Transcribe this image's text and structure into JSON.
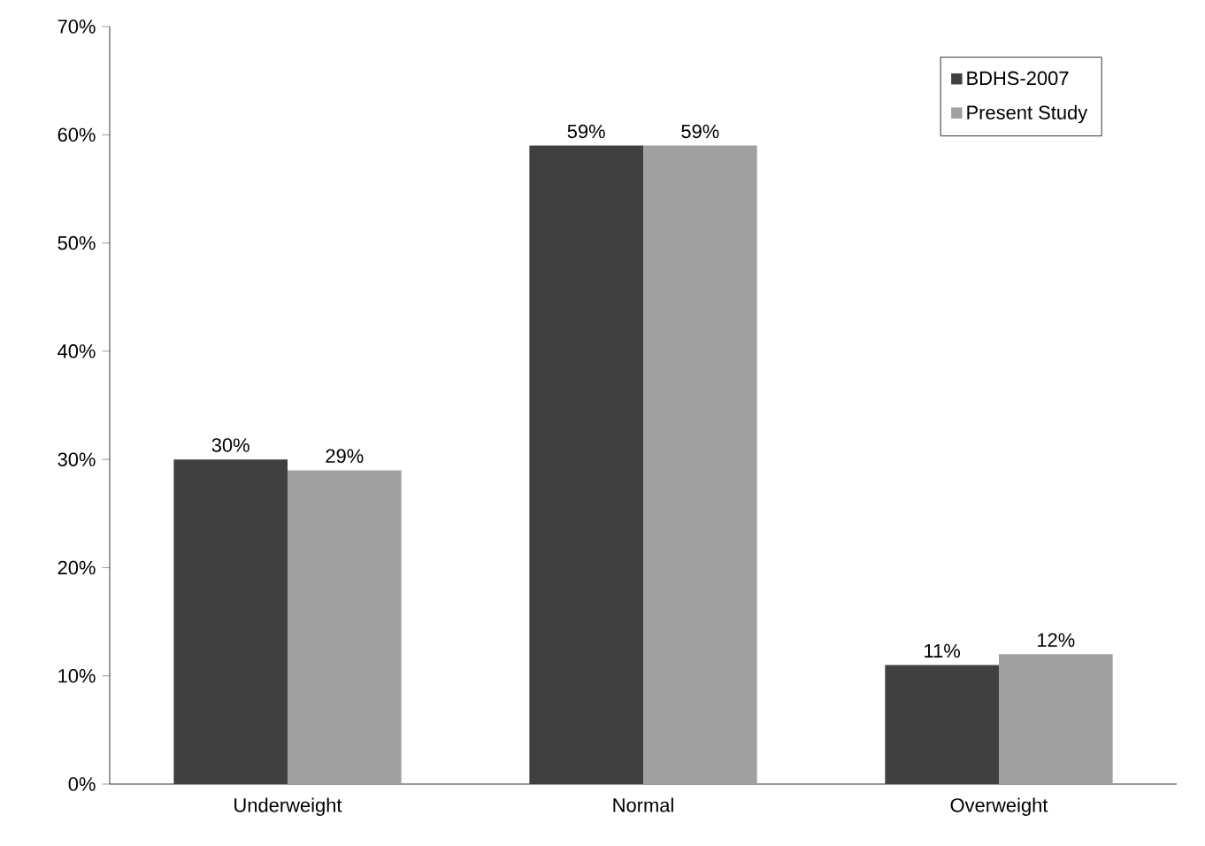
{
  "chart_data": {
    "type": "bar",
    "categories": [
      "Underweight",
      "Normal",
      "Overweight"
    ],
    "series": [
      {
        "name": "BDHS-2007",
        "color": "#404040",
        "values": [
          30,
          59,
          11
        ],
        "value_labels": [
          "30%",
          "59%",
          "11%"
        ]
      },
      {
        "name": "Present Study",
        "color": "#a0a0a0",
        "values": [
          29,
          59,
          12
        ],
        "value_labels": [
          "29%",
          "59%",
          "12%"
        ]
      }
    ],
    "ylim": [
      0,
      70
    ],
    "yticks": [
      {
        "value": 0,
        "label": "0%"
      },
      {
        "value": 10,
        "label": "10%"
      },
      {
        "value": 20,
        "label": "20%"
      },
      {
        "value": 30,
        "label": "30%"
      },
      {
        "value": 40,
        "label": "40%"
      },
      {
        "value": 50,
        "label": "50%"
      },
      {
        "value": 60,
        "label": "60%"
      },
      {
        "value": 70,
        "label": "70%"
      }
    ],
    "legend": "top right"
  }
}
